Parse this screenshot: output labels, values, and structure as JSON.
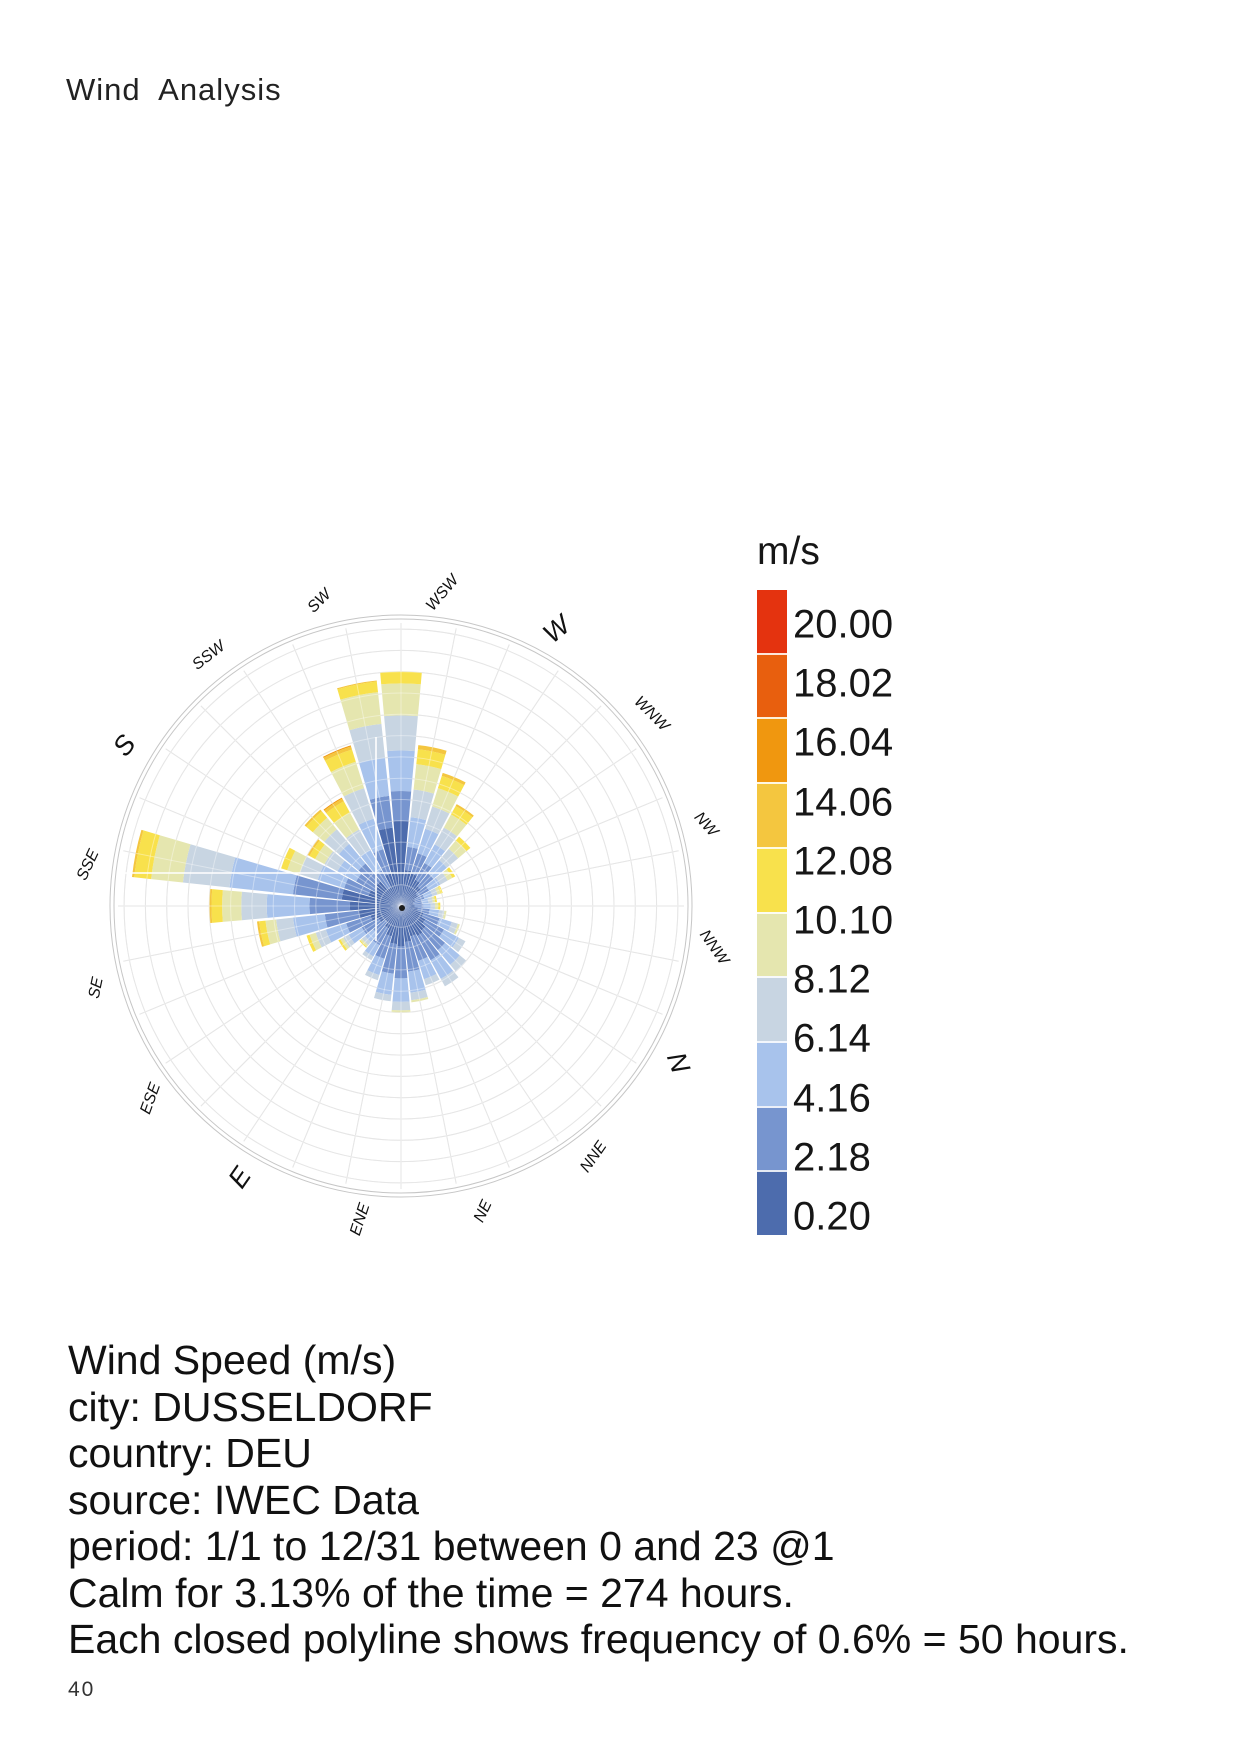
{
  "page": {
    "title": "Wind  Analysis",
    "page_number": "40"
  },
  "info": {
    "lines": [
      "Wind Speed (m/s)",
      "city: DUSSELDORF",
      "country: DEU",
      "source: IWEC Data",
      "period: 1/1 to 12/31 between 0 and 23 @1",
      "Calm for 3.13% of the time = 274 hours.",
      "Each closed polyline shows frequency of 0.6% = 50 hours."
    ]
  },
  "chart_data": {
    "type": "windrose",
    "title": "Wind Speed (m/s)",
    "city": "DUSSELDORF",
    "country": "DEU",
    "source": "IWEC Data",
    "period": "1/1 to 12/31 between 0 and 23 @1",
    "calm_percent": 3.13,
    "calm_hours": 274,
    "ring_frequency_percent": 0.6,
    "ring_hours": 50,
    "legend": {
      "title": "m/s",
      "boundary_labels": [
        "20.00",
        "18.02",
        "16.04",
        "14.06",
        "12.08",
        "10.10",
        "8.12",
        "6.14",
        "4.16",
        "2.18",
        "0.20"
      ],
      "band_colors_top_to_bottom": [
        "#e4330f",
        "#e85f0e",
        "#f0970f",
        "#f4c63f",
        "#f8e14c",
        "#e5e6af",
        "#c8d5e2",
        "#a8c3ec",
        "#7795cf",
        "#4d6cad"
      ]
    },
    "speed_bin_edges_mps": [
      0.2,
      2.18,
      4.16,
      6.14,
      8.12,
      10.1,
      12.08,
      14.06,
      16.04,
      18.02,
      20.0
    ],
    "speed_bin_colors_low_to_high": [
      "#4d6cad",
      "#7795cf",
      "#a8c3ec",
      "#c8d5e2",
      "#e5e6af",
      "#f8e14c",
      "#f4c63f",
      "#f0970f",
      "#e85f0e",
      "#e4330f"
    ],
    "grid": {
      "rings": 13,
      "spokes": 32,
      "on": true
    },
    "compass": [
      {
        "label": "WSW",
        "angle": 0,
        "rot": -50,
        "major": false
      },
      {
        "label": "W",
        "angle": 22.5,
        "rot": -40,
        "major": true
      },
      {
        "label": "WNW",
        "angle": 45,
        "rot": 45,
        "major": false
      },
      {
        "label": "NW",
        "angle": 67.5,
        "rot": 48,
        "major": false
      },
      {
        "label": "NNW",
        "angle": 90,
        "rot": 55,
        "major": false
      },
      {
        "label": "N",
        "angle": 112.5,
        "rot": 70,
        "major": true
      },
      {
        "label": "NNE",
        "angle": 135,
        "rot": -55,
        "major": false
      },
      {
        "label": "NE",
        "angle": 157.5,
        "rot": -65,
        "major": false
      },
      {
        "label": "ENE",
        "angle": 180,
        "rot": -72,
        "major": false
      },
      {
        "label": "E",
        "angle": 202.5,
        "rot": -55,
        "major": true
      },
      {
        "label": "ESE",
        "angle": 225,
        "rot": -70,
        "major": false
      },
      {
        "label": "SE",
        "angle": 247.5,
        "rot": -78,
        "major": false
      },
      {
        "label": "SSE",
        "angle": 270,
        "rot": -65,
        "major": false
      },
      {
        "label": "S",
        "angle": 292.5,
        "rot": -52,
        "major": true
      },
      {
        "label": "SSW",
        "angle": 315,
        "rot": -38,
        "major": false
      },
      {
        "label": "SW",
        "angle": 337.5,
        "rot": -45,
        "major": false
      }
    ],
    "petals": [
      {
        "angle": 0.0,
        "freq_percent": [
          2.4,
          0.84,
          1.14,
          0.99,
          0.9,
          0.33
        ]
      },
      {
        "angle": 11.25,
        "freq_percent": [
          1.02,
          0.66,
          0.84,
          0.78,
          0.72,
          0.42,
          0.12
        ]
      },
      {
        "angle": 22.5,
        "freq_percent": [
          0.96,
          0.6,
          0.72,
          0.66,
          0.54,
          0.36,
          0.09
        ]
      },
      {
        "angle": 33.75,
        "freq_percent": [
          0.84,
          0.54,
          0.6,
          0.54,
          0.42,
          0.27,
          0.06
        ]
      },
      {
        "angle": 45.0,
        "freq_percent": [
          0.72,
          0.48,
          0.48,
          0.42,
          0.3,
          0.15
        ]
      },
      {
        "angle": 56.25,
        "freq_percent": [
          0.54,
          0.36,
          0.36,
          0.24,
          0.15,
          0.09
        ]
      },
      {
        "angle": 67.5,
        "freq_percent": [
          0.42,
          0.27,
          0.24,
          0.15,
          0.09,
          0.06
        ]
      },
      {
        "angle": 78.75,
        "freq_percent": [
          0.36,
          0.24,
          0.18,
          0.12,
          0.07,
          0.05
        ]
      },
      {
        "angle": 90.0,
        "freq_percent": [
          0.39,
          0.24,
          0.21,
          0.12,
          0.09,
          0.06
        ]
      },
      {
        "angle": 101.25,
        "freq_percent": [
          0.48,
          0.33,
          0.27,
          0.15,
          0.06
        ]
      },
      {
        "angle": 112.5,
        "freq_percent": [
          0.66,
          0.48,
          0.36,
          0.18,
          0.06
        ]
      },
      {
        "angle": 123.75,
        "freq_percent": [
          0.78,
          0.6,
          0.48,
          0.21
        ]
      },
      {
        "angle": 135.0,
        "freq_percent": [
          0.9,
          0.72,
          0.54,
          0.24
        ]
      },
      {
        "angle": 146.25,
        "freq_percent": [
          0.96,
          0.78,
          0.6,
          0.24
        ]
      },
      {
        "angle": 157.5,
        "freq_percent": [
          0.9,
          0.72,
          0.54,
          0.18
        ]
      },
      {
        "angle": 168.75,
        "freq_percent": [
          1.02,
          0.84,
          0.6,
          0.21,
          0.06
        ]
      },
      {
        "angle": 180.0,
        "freq_percent": [
          1.14,
          0.9,
          0.66,
          0.24,
          0.06
        ]
      },
      {
        "angle": 191.25,
        "freq_percent": [
          1.08,
          0.84,
          0.6,
          0.18
        ]
      },
      {
        "angle": 202.5,
        "freq_percent": [
          0.9,
          0.66,
          0.48,
          0.15
        ]
      },
      {
        "angle": 213.75,
        "freq_percent": [
          0.72,
          0.54,
          0.36,
          0.12
        ]
      },
      {
        "angle": 225.0,
        "freq_percent": [
          0.6,
          0.42,
          0.3,
          0.12,
          0.06,
          0.03
        ]
      },
      {
        "angle": 236.25,
        "freq_percent": [
          0.72,
          0.54,
          0.42,
          0.18,
          0.09,
          0.06
        ]
      },
      {
        "angle": 247.5,
        "freq_percent": [
          0.9,
          0.72,
          0.6,
          0.3,
          0.18,
          0.09
        ]
      },
      {
        "angle": 258.75,
        "freq_percent": [
          1.2,
          0.96,
          0.9,
          0.48,
          0.3,
          0.18,
          0.06
        ]
      },
      {
        "angle": 270.0,
        "freq_percent": [
          1.44,
          1.14,
          1.2,
          0.72,
          0.54,
          0.3,
          0.06
        ]
      },
      {
        "angle": 281.25,
        "freq_percent": [
          1.68,
          1.38,
          1.8,
          1.32,
          0.9,
          0.48,
          0.06
        ]
      },
      {
        "angle": 292.5,
        "freq_percent": [
          0.96,
          0.72,
          0.78,
          0.54,
          0.36,
          0.18
        ]
      },
      {
        "angle": 303.75,
        "freq_percent": [
          0.84,
          0.6,
          0.6,
          0.42,
          0.3,
          0.18,
          0.06
        ]
      },
      {
        "angle": 315.0,
        "freq_percent": [
          0.9,
          0.66,
          0.72,
          0.54,
          0.42,
          0.24,
          0.06
        ]
      },
      {
        "angle": 326.25,
        "freq_percent": [
          0.6,
          0.54,
          0.66,
          0.66,
          0.54,
          0.36,
          0.09,
          0.03
        ]
      },
      {
        "angle": 337.5,
        "freq_percent": [
          0.96,
          0.72,
          0.9,
          0.9,
          0.78,
          0.36,
          0.09,
          0.03
        ]
      },
      {
        "angle": 348.75,
        "freq_percent": [
          2.22,
          0.9,
          1.08,
          0.96,
          0.9,
          0.3,
          0.03
        ]
      }
    ]
  }
}
